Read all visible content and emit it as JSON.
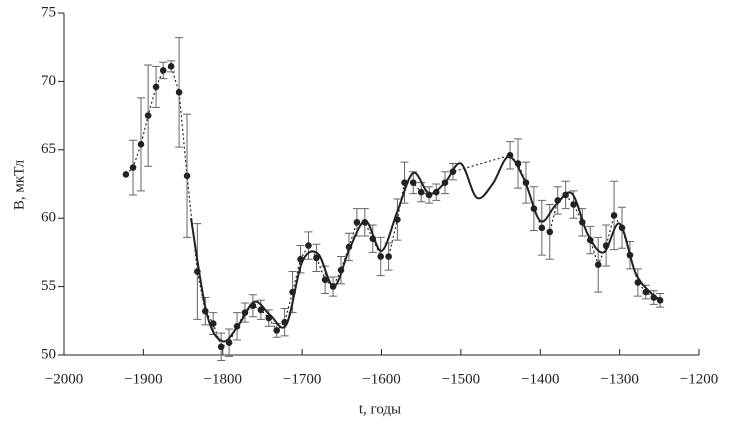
{
  "chart_data": {
    "type": "errorbar-line",
    "xlabel": "t, годы",
    "ylabel": "B, мкТл",
    "xlim": [
      -2000,
      -1200
    ],
    "xticks": [
      {
        "value": -2000,
        "label": "−2000"
      },
      {
        "value": -1900,
        "label": "−1900"
      },
      {
        "value": -1800,
        "label": "−1800"
      },
      {
        "value": -1700,
        "label": "−1700"
      },
      {
        "value": -1600,
        "label": "−1600"
      },
      {
        "value": -1500,
        "label": "−1500"
      },
      {
        "value": -1400,
        "label": "−1400"
      },
      {
        "value": -1300,
        "label": "−1300"
      },
      {
        "value": -1200,
        "label": "−1200"
      }
    ],
    "ylim": [
      50,
      75
    ],
    "yticks": [
      50,
      55,
      60,
      65,
      70,
      75
    ],
    "grid": false,
    "series": [
      {
        "color": "#222222",
        "style": "dotted",
        "markers": true,
        "x": [
          -1922,
          -1913,
          -1903,
          -1894,
          -1884,
          -1875,
          -1865,
          -1855,
          -1845,
          -1832,
          -1822,
          -1812,
          -1802,
          -1792,
          -1782,
          -1772,
          -1762,
          -1752,
          -1742,
          -1732,
          -1722,
          -1712,
          -1702,
          -1692,
          -1682,
          -1671,
          -1661,
          -1651,
          -1641,
          -1631,
          -1621,
          -1611,
          -1601,
          -1591,
          -1580,
          -1571,
          -1560,
          -1550,
          -1540,
          -1531,
          -1520,
          -1510,
          -1438,
          -1428,
          -1418,
          -1408,
          -1398,
          -1388,
          -1378,
          -1368,
          -1358,
          -1347,
          -1337,
          -1327,
          -1317,
          -1307,
          -1297,
          -1287,
          -1277,
          -1267,
          -1257,
          -1249
        ],
        "values": [
          63.2,
          63.7,
          65.4,
          67.5,
          69.6,
          70.8,
          71.1,
          69.2,
          63.1,
          56.1,
          53.2,
          52.3,
          50.6,
          50.9,
          52.1,
          53.1,
          53.6,
          53.3,
          52.7,
          51.8,
          52.4,
          54.6,
          57.0,
          58.0,
          57.1,
          55.5,
          55.0,
          56.2,
          57.9,
          59.7,
          59.7,
          58.5,
          57.2,
          57.2,
          59.9,
          62.6,
          62.6,
          61.9,
          61.7,
          61.9,
          62.6,
          63.4,
          64.6,
          64.0,
          62.6,
          60.7,
          59.3,
          59.0,
          61.3,
          61.7,
          61.0,
          59.7,
          58.4,
          56.6,
          58.0,
          60.2,
          59.3,
          57.3,
          55.3,
          54.6,
          54.2,
          54.0
        ],
        "errors": [
          null,
          2,
          3.4,
          3.7,
          1.5,
          0.6,
          0.4,
          4,
          4.5,
          3.5,
          1,
          0.8,
          1,
          1,
          1,
          0.7,
          0.8,
          0.7,
          0.6,
          0.5,
          1,
          1.5,
          1,
          1,
          1,
          1,
          0.7,
          1,
          1,
          1,
          1,
          1,
          1.4,
          1,
          1.5,
          1.5,
          0.8,
          0.7,
          0.6,
          0.6,
          0.8,
          0.6,
          1,
          1.8,
          1.5,
          1.6,
          2,
          2,
          1,
          1,
          1,
          1,
          1,
          2,
          1.5,
          2.5,
          1.5,
          1,
          1,
          0.5,
          0.5,
          0.5
        ]
      },
      {
        "color": "#222222",
        "style": "solid",
        "markers": false,
        "x": [
          -1840,
          -1820,
          -1800,
          -1780,
          -1760,
          -1740,
          -1720,
          -1700,
          -1680,
          -1660,
          -1640,
          -1620,
          -1600,
          -1580,
          -1560,
          -1540,
          -1520,
          -1500,
          -1480,
          -1460,
          -1440,
          -1420,
          -1400,
          -1380,
          -1360,
          -1340,
          -1320,
          -1300,
          -1280,
          -1260,
          -1250
        ],
        "values": [
          60,
          53,
          51,
          52.2,
          53.9,
          52.9,
          52.2,
          56.8,
          57.4,
          55,
          57.8,
          59.8,
          57.6,
          60.5,
          63.3,
          61.8,
          62.6,
          64,
          61.5,
          62.5,
          64.5,
          62.8,
          59.8,
          61,
          61.8,
          58.8,
          57.5,
          59.6,
          56,
          54.5,
          54.1
        ]
      }
    ]
  }
}
